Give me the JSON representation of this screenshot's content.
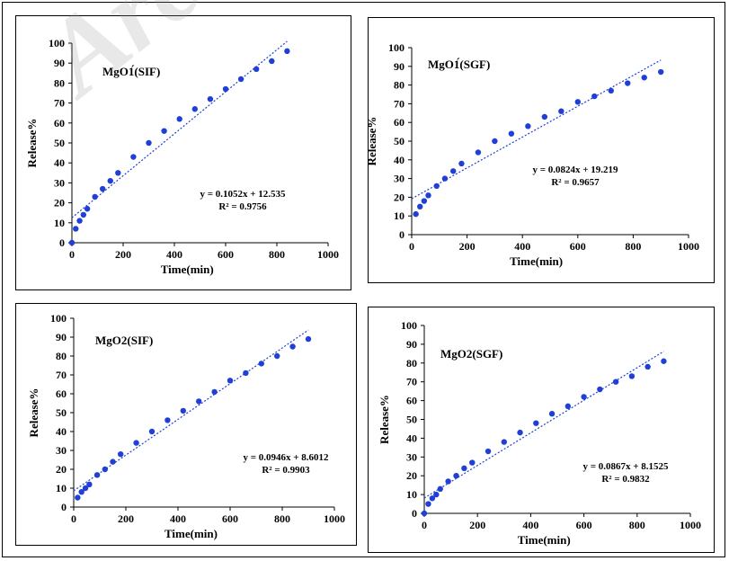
{
  "watermark": "Archi",
  "chart_data": [
    {
      "type": "scatter",
      "title": "MgO1́(SIF)",
      "xlabel": "Time(min)",
      "ylabel": "Release%",
      "xlim": [
        0,
        1000
      ],
      "ylim": [
        0,
        100
      ],
      "xticks": [
        0,
        200,
        400,
        600,
        800,
        1000
      ],
      "yticks": [
        0,
        10,
        20,
        30,
        40,
        50,
        60,
        70,
        80,
        90,
        100
      ],
      "x": [
        0,
        15,
        30,
        45,
        60,
        90,
        120,
        150,
        180,
        240,
        300,
        360,
        420,
        480,
        540,
        600,
        660,
        720,
        780,
        840
      ],
      "y": [
        0,
        7,
        11,
        14,
        17,
        23,
        27,
        31,
        35,
        43,
        50,
        56,
        62,
        67,
        72,
        77,
        82,
        87,
        91,
        96
      ],
      "trendline": {
        "slope": 0.1052,
        "intercept": 12.535,
        "x_range": [
          0,
          840
        ]
      },
      "equation": "y = 0.1052x + 12.535",
      "r2": "R² = 0.9756"
    },
    {
      "type": "scatter",
      "title": "MgO1́(SGF)",
      "xlabel": "Time(min)",
      "ylabel": "Release%",
      "xlim": [
        0,
        1000
      ],
      "ylim": [
        0,
        100
      ],
      "xticks": [
        0,
        200,
        400,
        600,
        800,
        1000
      ],
      "yticks": [
        0,
        10,
        20,
        30,
        40,
        50,
        60,
        70,
        80,
        90,
        100
      ],
      "x": [
        15,
        30,
        45,
        60,
        90,
        120,
        150,
        180,
        240,
        300,
        360,
        420,
        480,
        540,
        600,
        660,
        720,
        780,
        840,
        900
      ],
      "y": [
        11,
        15,
        18,
        21,
        26,
        30,
        34,
        38,
        44,
        50,
        54,
        58,
        63,
        66,
        71,
        74,
        77,
        81,
        84,
        87
      ],
      "trendline": {
        "slope": 0.0824,
        "intercept": 19.219,
        "x_range": [
          0,
          900
        ]
      },
      "equation": "y = 0.0824x + 19.219",
      "r2": "R² = 0.9657"
    },
    {
      "type": "scatter",
      "title": "MgO2(SIF)",
      "xlabel": "Time(min)",
      "ylabel": "Release%",
      "xlim": [
        0,
        1000
      ],
      "ylim": [
        0,
        100
      ],
      "xticks": [
        0,
        200,
        400,
        600,
        800,
        1000
      ],
      "yticks": [
        0,
        10,
        20,
        30,
        40,
        50,
        60,
        70,
        80,
        90,
        100
      ],
      "x": [
        15,
        30,
        45,
        60,
        90,
        120,
        150,
        180,
        240,
        300,
        360,
        420,
        480,
        540,
        600,
        660,
        720,
        780,
        840,
        900
      ],
      "y": [
        5,
        8,
        10,
        12,
        17,
        20,
        24,
        28,
        34,
        40,
        46,
        51,
        56,
        61,
        67,
        71,
        76,
        80,
        85,
        89
      ],
      "trendline": {
        "slope": 0.0946,
        "intercept": 8.6012,
        "x_range": [
          0,
          900
        ]
      },
      "equation": "y = 0.0946x + 8.6012",
      "r2": "R² = 0.9903"
    },
    {
      "type": "scatter",
      "title": "MgO2(SGF)",
      "xlabel": "Time(min)",
      "ylabel": "Release%",
      "xlim": [
        0,
        1000
      ],
      "ylim": [
        0,
        100
      ],
      "xticks": [
        0,
        200,
        400,
        600,
        800,
        1000
      ],
      "yticks": [
        0,
        10,
        20,
        30,
        40,
        50,
        60,
        70,
        80,
        90,
        100
      ],
      "x": [
        0,
        15,
        30,
        45,
        60,
        90,
        120,
        150,
        180,
        240,
        300,
        360,
        420,
        480,
        540,
        600,
        660,
        720,
        780,
        840,
        900
      ],
      "y": [
        0,
        5,
        8,
        10,
        13,
        17,
        20,
        24,
        27,
        33,
        38,
        43,
        48,
        53,
        57,
        62,
        66,
        70,
        73,
        78,
        81
      ],
      "trendline": {
        "slope": 0.0867,
        "intercept": 8.1525,
        "x_range": [
          0,
          900
        ]
      },
      "equation": "y = 0.0867x + 8.1525",
      "r2": "R² = 0.9832"
    }
  ],
  "colors": {
    "marker": "#1f3fd6",
    "trendline": "#1f3fd6",
    "axis": "#000000",
    "text": "#000000"
  }
}
